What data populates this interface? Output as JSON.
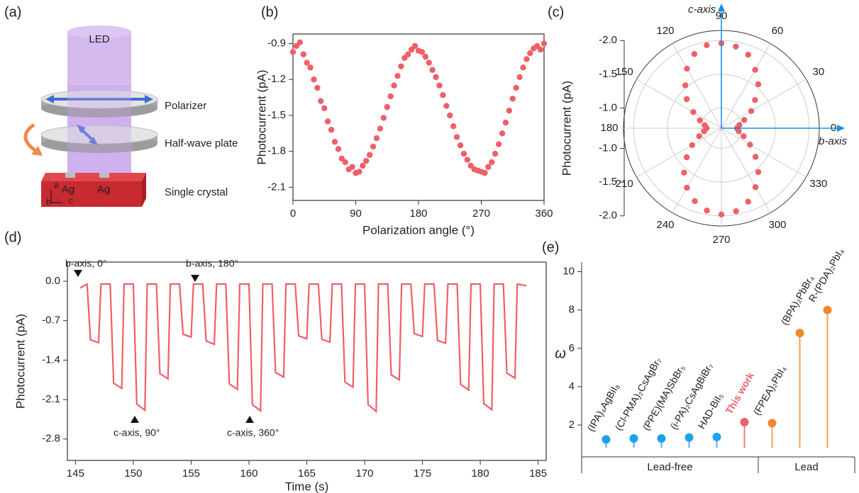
{
  "panels": [
    "(a)",
    "(b)",
    "(c)",
    "(d)",
    "(e)"
  ],
  "diagram": {
    "led": "LED",
    "polarizer": "Polarizer",
    "half_wave_plate": "Half-wave plate",
    "single_crystal": "Single crystal",
    "electrodes": [
      "Ag",
      "Ag"
    ],
    "axes": [
      "a",
      "b",
      "c"
    ]
  },
  "chart_data": [
    {
      "type": "scatter",
      "xlabel": "Polarization angle (°)",
      "ylabel": "Photocurrent (pA)",
      "color": "#ef5f67",
      "x": [
        0,
        5,
        10,
        15,
        20,
        25,
        30,
        35,
        40,
        45,
        50,
        55,
        60,
        65,
        70,
        75,
        80,
        85,
        90,
        95,
        100,
        105,
        110,
        115,
        120,
        125,
        130,
        135,
        140,
        145,
        150,
        155,
        160,
        165,
        170,
        175,
        180,
        185,
        190,
        195,
        200,
        205,
        210,
        215,
        220,
        225,
        230,
        235,
        240,
        245,
        250,
        255,
        260,
        265,
        270,
        275,
        280,
        285,
        290,
        295,
        300,
        305,
        310,
        315,
        320,
        325,
        330,
        335,
        340,
        345,
        350,
        355,
        360
      ],
      "values": [
        -0.97,
        -0.92,
        -0.89,
        -0.99,
        -1.06,
        -1.1,
        -1.2,
        -1.27,
        -1.38,
        -1.44,
        -1.55,
        -1.62,
        -1.72,
        -1.78,
        -1.86,
        -1.89,
        -1.95,
        -1.93,
        -1.98,
        -1.97,
        -1.92,
        -1.88,
        -1.83,
        -1.76,
        -1.69,
        -1.61,
        -1.52,
        -1.43,
        -1.34,
        -1.25,
        -1.17,
        -1.09,
        -1.02,
        -0.99,
        -0.95,
        -0.92,
        -0.96,
        -0.97,
        -1.01,
        -1.06,
        -1.12,
        -1.18,
        -1.25,
        -1.33,
        -1.42,
        -1.5,
        -1.59,
        -1.68,
        -1.75,
        -1.82,
        -1.87,
        -1.92,
        -1.95,
        -1.96,
        -1.97,
        -1.98,
        -1.93,
        -1.89,
        -1.82,
        -1.74,
        -1.65,
        -1.56,
        -1.46,
        -1.36,
        -1.27,
        -1.18,
        -1.1,
        -1.03,
        -0.98,
        -0.94,
        -0.92,
        -0.95,
        -0.9
      ],
      "xlim": [
        0,
        360
      ],
      "ylim": [
        -2.21,
        -0.82
      ],
      "xticks": [
        0,
        90,
        180,
        270,
        360
      ],
      "yticks": [
        -0.9,
        -1.2,
        -1.5,
        -1.8,
        -2.1
      ]
    },
    {
      "type": "polar",
      "ylabel": "Photocurrent (pA)",
      "up_axis_label": "c-axis",
      "right_axis_label": "b-axis",
      "color": "#ef5f67",
      "axis_color": "#1a8fe3",
      "theta": [
        0,
        10,
        20,
        30,
        40,
        50,
        60,
        70,
        80,
        90,
        100,
        110,
        120,
        130,
        140,
        150,
        160,
        170,
        180,
        190,
        200,
        210,
        220,
        230,
        240,
        250,
        260,
        270,
        280,
        290,
        300,
        310,
        320,
        330,
        340,
        350
      ],
      "values": [
        -0.93,
        -0.97,
        -1.06,
        -1.21,
        -1.35,
        -1.55,
        -1.7,
        -1.86,
        -1.93,
        -1.96,
        -1.95,
        -1.87,
        -1.72,
        -1.53,
        -1.37,
        -1.18,
        -1.04,
        -0.95,
        -0.92,
        -0.96,
        -1.05,
        -1.2,
        -1.37,
        -1.56,
        -1.72,
        -1.85,
        -1.94,
        -1.98,
        -1.95,
        -1.86,
        -1.71,
        -1.55,
        -1.36,
        -1.19,
        -1.05,
        -0.96
      ],
      "rlim": [
        -0.7,
        -2.15
      ],
      "rticks": [
        {
          "value": -1,
          "label": "-1.0"
        },
        -1.5,
        {
          "value": -2,
          "label": "-2.0"
        }
      ],
      "thetaticks": [
        0,
        30,
        60,
        90,
        120,
        150,
        180,
        210,
        240,
        270,
        300,
        330
      ]
    },
    {
      "type": "line",
      "xlabel": "Time (s)",
      "ylabel": "Photocurrent (pA)",
      "color": "#ef5f67",
      "annotations": [
        "b-axis, 0°",
        "b-axis, 180°",
        "c-axis, 90°",
        "c-axis, 360°"
      ],
      "x": [
        145.4,
        146,
        146.3,
        147,
        147.2,
        148,
        148.3,
        149,
        149.2,
        150,
        150.3,
        151,
        151.2,
        152,
        152.3,
        153,
        153.2,
        154,
        154.3,
        155,
        155.2,
        156,
        156.3,
        157,
        157.2,
        158,
        158.3,
        159,
        159.2,
        160,
        160.3,
        161,
        161.2,
        162,
        162.3,
        163,
        163.2,
        164,
        164.3,
        165,
        165.2,
        166,
        166.3,
        167,
        167.2,
        168,
        168.3,
        169,
        169.2,
        170,
        170.3,
        171,
        171.2,
        172,
        172.3,
        173,
        173.2,
        174,
        174.3,
        175,
        175.2,
        176,
        176.3,
        177,
        177.2,
        178,
        178.3,
        179,
        179.2,
        180,
        180.3,
        181,
        181.2,
        182,
        182.3,
        183,
        183.2,
        184
      ],
      "values": [
        -0.12,
        -0.05,
        -1.04,
        -1.09,
        -0.05,
        -0.05,
        -1.81,
        -1.9,
        -0.05,
        -0.05,
        -2.18,
        -2.29,
        -0.05,
        -0.05,
        -1.64,
        -1.73,
        -0.05,
        -0.05,
        -0.94,
        -0.99,
        -0.05,
        -0.05,
        -1.06,
        -1.12,
        -0.05,
        -0.05,
        -1.82,
        -1.92,
        -0.05,
        -0.05,
        -2.19,
        -2.3,
        -0.05,
        -0.05,
        -1.62,
        -1.7,
        -0.05,
        -0.05,
        -0.97,
        -1.02,
        -0.05,
        -0.05,
        -1.03,
        -1.08,
        -0.05,
        -0.05,
        -1.79,
        -1.88,
        -0.05,
        -0.05,
        -2.19,
        -2.31,
        -0.05,
        -0.05,
        -1.66,
        -1.75,
        -0.05,
        -0.05,
        -0.93,
        -0.98,
        -0.05,
        -0.05,
        -1.05,
        -1.1,
        -0.05,
        -0.05,
        -1.83,
        -1.93,
        -0.05,
        -0.05,
        -2.17,
        -2.28,
        -0.05,
        -0.05,
        -1.63,
        -1.72,
        -0.05,
        -0.08
      ],
      "xlim": [
        144.3,
        185.7
      ],
      "ylim": [
        -3.18,
        0.34
      ],
      "xticks": [
        145,
        150,
        155,
        160,
        165,
        170,
        175,
        180,
        185
      ],
      "yticks": [
        {
          "value": 0,
          "label": "0.0"
        },
        -0.7,
        -1.4,
        -2.1,
        -2.8
      ]
    },
    {
      "type": "stem",
      "ylabel": "ω",
      "categories": [
        "(IPA)₄AgBiI₈",
        "(Cl-PMA)₂CsAgBr₇",
        "(PPE)(MA)SbBr₅",
        "(i-PA)₂CsAgBiBr₇",
        "HAD-BiI₅",
        "This work",
        "(FPEA)₂PbI₄",
        "(BPA)₂PbBr₄",
        "R-(PDA)₂PbI₄"
      ],
      "values": [
        1.25,
        1.3,
        1.3,
        1.35,
        1.38,
        2.15,
        2.1,
        6.8,
        8.0
      ],
      "colors": [
        "#1ca2ec",
        "#1ca2ec",
        "#1ca2ec",
        "#1ca2ec",
        "#1ca2ec",
        "#ef5f67",
        "#ec8a2f",
        "#ec8a2f",
        "#ec8a2f"
      ],
      "label_colors": [
        "#222",
        "#222",
        "#222",
        "#222",
        "#222",
        "#ef5f67",
        "#222",
        "#222",
        "#222"
      ],
      "group": [
        "Lead-free",
        "Lead-free",
        "Lead-free",
        "Lead-free",
        "Lead-free",
        "Lead-free",
        "Lead",
        "Lead",
        "Lead"
      ],
      "ylim": [
        0.82,
        10.5
      ],
      "yticks": [
        2,
        4,
        6,
        8,
        10
      ]
    }
  ]
}
